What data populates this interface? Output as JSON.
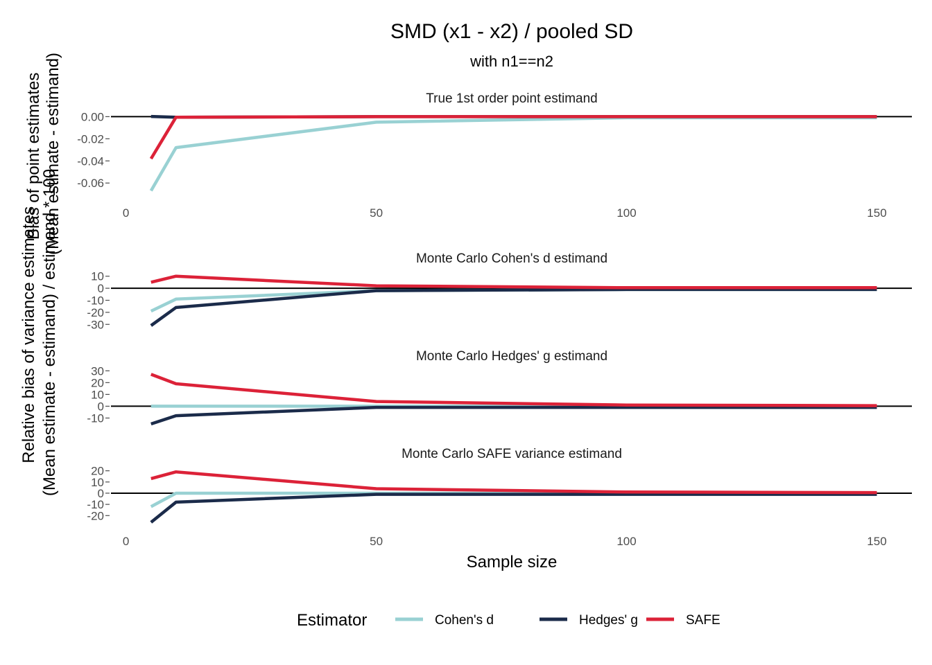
{
  "chart_data": {
    "type": "line",
    "title": "SMD (x1 - x2) / pooled SD",
    "subtitle": "with n1==n2",
    "xlabel": "Sample size",
    "ylabel_top": "Bias of point estimates\n(Mean estimate - estimand)",
    "ylabel_bottom": "Relative bias of variance estimates\n(Mean estimate - estimand) / estimand * 100",
    "x": [
      5,
      10,
      50,
      100,
      150
    ],
    "xticks": [
      0,
      50,
      100,
      150
    ],
    "xlim": [
      -3,
      157
    ],
    "colors": {
      "Cohen's d": "#99d1d3",
      "Hedges' g": "#1b2b4a",
      "SAFE": "#dc2238"
    },
    "legend": {
      "title": "Estimator",
      "position": "bottom",
      "entries": [
        "Cohen's d",
        "Hedges' g",
        "SAFE"
      ]
    },
    "panels": [
      {
        "title": "True 1st order point estimand",
        "ylim": [
          -0.068,
          0.0015
        ],
        "yticks": [
          0,
          -0.02,
          -0.04,
          -0.06
        ],
        "ytick_labels": [
          "0.00",
          "-0.02",
          "-0.04",
          "-0.06"
        ],
        "show_xticks": true,
        "series": [
          {
            "name": "Cohen's d",
            "values": [
              -0.067,
              -0.028,
              -0.005,
              -0.001,
              -0.001
            ]
          },
          {
            "name": "Hedges' g",
            "values": [
              0.0002,
              -0.0005,
              0.0,
              0.0,
              0.0
            ]
          },
          {
            "name": "SAFE",
            "values": [
              -0.038,
              -0.0005,
              0.0,
              0.0,
              0.0
            ]
          }
        ]
      },
      {
        "title": "Monte Carlo Cohen's d estimand",
        "ylim": [
          -31,
          11
        ],
        "yticks": [
          10,
          0,
          -10,
          -20,
          -30
        ],
        "ytick_labels": [
          "10",
          "0",
          "-10",
          "-20",
          "-30"
        ],
        "show_xticks": false,
        "series": [
          {
            "name": "Cohen's d",
            "values": [
              -19,
              -9,
              -2,
              -1,
              -1
            ]
          },
          {
            "name": "Hedges' g",
            "values": [
              -31,
              -16,
              -2,
              -1,
              -1
            ]
          },
          {
            "name": "SAFE",
            "values": [
              5,
              10,
              2,
              0.5,
              0.5
            ]
          }
        ]
      },
      {
        "title": "Monte Carlo Hedges' g estimand",
        "ylim": [
          -15,
          29
        ],
        "yticks": [
          30,
          20,
          10,
          0,
          -10
        ],
        "ytick_labels": [
          "30",
          "20",
          "10",
          "0",
          "-10"
        ],
        "show_xticks": false,
        "series": [
          {
            "name": "Cohen's d",
            "values": [
              0,
              0,
              0,
              0,
              0
            ]
          },
          {
            "name": "Hedges' g",
            "values": [
              -15,
              -8,
              -1,
              -1,
              -1
            ]
          },
          {
            "name": "SAFE",
            "values": [
              27,
              19,
              4,
              1,
              0.5
            ]
          }
        ]
      },
      {
        "title": "Monte Carlo SAFE variance estimand",
        "ylim": [
          -26,
          21
        ],
        "yticks": [
          20,
          10,
          0,
          -10,
          -20
        ],
        "ytick_labels": [
          "20",
          "10",
          "0",
          "-10",
          "-20"
        ],
        "show_xticks": true,
        "series": [
          {
            "name": "Cohen's d",
            "values": [
              -12,
              0,
              0,
              0,
              0
            ]
          },
          {
            "name": "Hedges' g",
            "values": [
              -26,
              -8,
              -1,
              -1,
              -1
            ]
          },
          {
            "name": "SAFE",
            "values": [
              13,
              19,
              4,
              1,
              0.5
            ]
          }
        ]
      }
    ]
  }
}
